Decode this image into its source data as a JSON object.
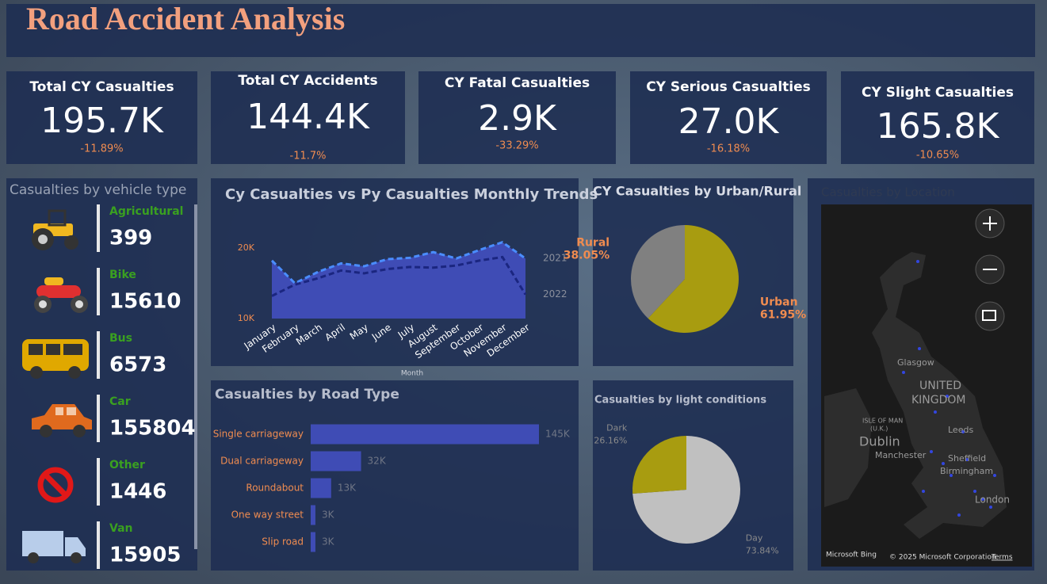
{
  "title": "Road Accident Analysis",
  "kpis": [
    {
      "label": "Total CY Casualties",
      "value": "195.7K",
      "change": "-11.89%"
    },
    {
      "label": "Total CY Accidents",
      "value": "144.4K",
      "change": "-11.7%"
    },
    {
      "label": "CY Fatal Casualties",
      "value": "2.9K",
      "change": "-33.29%"
    },
    {
      "label": "CY Serious Casualties",
      "value": "27.0K",
      "change": "-16.18%"
    },
    {
      "label": "CY Slight Casualties",
      "value": "165.8K",
      "change": "-10.65%"
    }
  ],
  "vehicles": {
    "title": "Casualties by vehicle type",
    "items": [
      {
        "name": "Agricultural",
        "value": 399
      },
      {
        "name": "Bike",
        "value": 15610
      },
      {
        "name": "Bus",
        "value": 6573
      },
      {
        "name": "Car",
        "value": 155804
      },
      {
        "name": "Other",
        "value": 1446
      },
      {
        "name": "Van",
        "value": 15905
      }
    ]
  },
  "chart_data": [
    {
      "type": "area-line",
      "title": "Cy Casualties vs Py Casualties Monthly Trends",
      "x_label": "Month",
      "categories": [
        "January",
        "February",
        "March",
        "April",
        "May",
        "June",
        "July",
        "August",
        "September",
        "October",
        "November",
        "December"
      ],
      "series": [
        {
          "name": "2021",
          "color": "#4a8dff",
          "values": [
            18200,
            15000,
            16600,
            17800,
            17400,
            18400,
            18600,
            19400,
            18500,
            19700,
            20800,
            18500
          ]
        },
        {
          "name": "2022",
          "color": "#1b2680",
          "values": [
            13200,
            14800,
            15700,
            16800,
            16400,
            17000,
            17300,
            17200,
            17500,
            18200,
            18700,
            13400
          ]
        }
      ],
      "fill": "#3f4cb5",
      "ylim": [
        10000,
        22000
      ],
      "yticks": [
        {
          "value": 10000,
          "label": "10K"
        },
        {
          "value": 20000,
          "label": "20K"
        }
      ]
    },
    {
      "type": "pie",
      "title": "CY Casualties by Urban/Rural",
      "categories": [
        "Urban",
        "Rural"
      ],
      "values": [
        61.95,
        38.05
      ],
      "value_labels": [
        "61.95%",
        "38.05%"
      ],
      "colors": [
        "#a89c10",
        "#808080"
      ],
      "label_color": "#f08c50"
    },
    {
      "type": "hbar",
      "title": "Casualties by Road Type",
      "categories": [
        "Single carriageway",
        "Dual carriageway",
        "Roundabout",
        "One way street",
        "Slip road"
      ],
      "values": [
        145000,
        32000,
        13000,
        3000,
        3000
      ],
      "value_labels": [
        "145K",
        "32K",
        "13K",
        "3K",
        "3K"
      ],
      "color": "#3f4cb5"
    },
    {
      "type": "pie",
      "title": "Casualties by light conditions",
      "categories": [
        "Day",
        "Dark"
      ],
      "values": [
        73.84,
        26.16
      ],
      "value_labels": [
        "73.84%",
        "26.16%"
      ],
      "colors": [
        "#c0c0c0",
        "#a89c10"
      ],
      "label_color": "#8a8a8a"
    }
  ],
  "map": {
    "title": "Casualties by Location",
    "places": [
      "Glasgow",
      "UNITED",
      "KINGDOM",
      "ISLE OF MAN",
      "(U.K.)",
      "Dublin",
      "Leeds",
      "Manchester",
      "Sheffield",
      "Birmingham",
      "London"
    ],
    "brand": "Microsoft Bing",
    "copyright": "© 2025 Microsoft Corporation",
    "terms": "Terms"
  }
}
